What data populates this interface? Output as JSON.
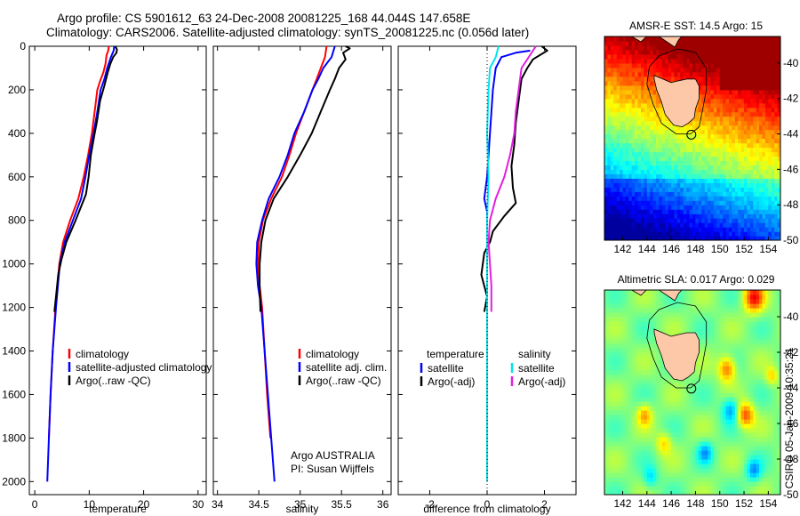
{
  "header": {
    "title_line1": "Argo profile: CS 5901612_63 24-Dec-2008 20081225_168 44.044S 147.658E",
    "title_line2": "Climatology: CARS2006. Satellite-adjusted climatology: synTS_20081225.nc (0.056d later)"
  },
  "side_label": "CSIRO 05-Jan-2009 10:35:21",
  "colors": {
    "climatology": "#ff0000",
    "satellite": "#0000ff",
    "argo": "#000000",
    "salinity_satellite": "#00e5ee",
    "salinity_argo": "#e020e0"
  },
  "chart_data": [
    {
      "type": "line",
      "id": "temperature-profile",
      "xlabel": "temperature",
      "xticks": [
        0,
        10,
        20,
        30
      ],
      "xlim": [
        -1,
        31.5
      ],
      "yticks": [
        0,
        200,
        400,
        600,
        800,
        1000,
        1200,
        1400,
        1600,
        1800,
        2000
      ],
      "ylim": [
        2000,
        0
      ],
      "ylim_axis": [
        0,
        2060
      ],
      "show_y_tick_labels": true,
      "legend": [
        "climatology",
        "satellite-adjusted climatology",
        "Argo(..raw -QC)"
      ],
      "series": [
        {
          "name": "climatology",
          "color": "#ff0000",
          "points": [
            [
              13.6,
              0
            ],
            [
              13.5,
              20
            ],
            [
              13.2,
              40
            ],
            [
              13.0,
              80
            ],
            [
              12.6,
              120
            ],
            [
              12.0,
              160
            ],
            [
              11.5,
              200
            ],
            [
              11.0,
              300
            ],
            [
              10.5,
              400
            ],
            [
              9.8,
              500
            ],
            [
              9.0,
              600
            ],
            [
              8.0,
              700
            ],
            [
              6.5,
              800
            ],
            [
              5.2,
              900
            ],
            [
              4.5,
              1000
            ],
            [
              3.8,
              1200
            ],
            [
              3.3,
              1400
            ],
            [
              2.9,
              1600
            ],
            [
              2.6,
              1800
            ]
          ]
        },
        {
          "name": "satellite-adjusted climatology",
          "color": "#0000ff",
          "points": [
            [
              14.6,
              0
            ],
            [
              14.5,
              20
            ],
            [
              14.0,
              50
            ],
            [
              13.3,
              100
            ],
            [
              12.8,
              150
            ],
            [
              12.1,
              200
            ],
            [
              11.5,
              300
            ],
            [
              10.8,
              400
            ],
            [
              10.0,
              500
            ],
            [
              9.3,
              600
            ],
            [
              8.5,
              700
            ],
            [
              7.0,
              800
            ],
            [
              5.5,
              900
            ],
            [
              4.6,
              1000
            ],
            [
              3.9,
              1200
            ],
            [
              3.3,
              1400
            ],
            [
              2.9,
              1600
            ],
            [
              2.6,
              1800
            ],
            [
              2.3,
              2000
            ]
          ]
        },
        {
          "name": "Argo(..raw -QC)",
          "color": "#000000",
          "points": [
            [
              14.8,
              0
            ],
            [
              15.1,
              15
            ],
            [
              15.0,
              30
            ],
            [
              14.4,
              50
            ],
            [
              13.9,
              80
            ],
            [
              13.4,
              120
            ],
            [
              12.8,
              180
            ],
            [
              12.0,
              250
            ],
            [
              11.4,
              350
            ],
            [
              11.0,
              400
            ],
            [
              10.3,
              500
            ],
            [
              9.9,
              600
            ],
            [
              9.4,
              680
            ],
            [
              8.3,
              750
            ],
            [
              7.5,
              800
            ],
            [
              5.8,
              900
            ],
            [
              4.9,
              980
            ],
            [
              4.3,
              1050
            ],
            [
              3.9,
              1150
            ],
            [
              3.6,
              1220
            ]
          ]
        }
      ]
    },
    {
      "type": "line",
      "id": "salinity-profile",
      "xlabel": "salinity",
      "xticks": [
        34,
        34.5,
        35,
        35.5,
        36
      ],
      "xlim": [
        33.95,
        36.1
      ],
      "yticks": [
        0,
        200,
        400,
        600,
        800,
        1000,
        1200,
        1400,
        1600,
        1800,
        2000
      ],
      "ylim": [
        2000,
        0
      ],
      "ylim_axis": [
        0,
        2060
      ],
      "show_y_tick_labels": false,
      "legend": [
        "climatology",
        "satellite adj. clim.",
        "Argo(..raw -QC)"
      ],
      "annotation": [
        "Argo AUSTRALIA",
        "PI: Susan Wijffels"
      ],
      "series": [
        {
          "name": "climatology",
          "color": "#ff0000",
          "points": [
            [
              35.32,
              0
            ],
            [
              35.3,
              50
            ],
            [
              35.25,
              100
            ],
            [
              35.2,
              150
            ],
            [
              35.15,
              200
            ],
            [
              35.05,
              300
            ],
            [
              34.95,
              400
            ],
            [
              34.87,
              500
            ],
            [
              34.78,
              600
            ],
            [
              34.65,
              700
            ],
            [
              34.55,
              800
            ],
            [
              34.5,
              900
            ],
            [
              34.49,
              1000
            ],
            [
              34.51,
              1100
            ],
            [
              34.54,
              1200
            ],
            [
              34.57,
              1400
            ],
            [
              34.6,
              1600
            ],
            [
              34.64,
              1800
            ]
          ]
        },
        {
          "name": "satellite adj. clim.",
          "color": "#0000ff",
          "points": [
            [
              35.42,
              0
            ],
            [
              35.38,
              50
            ],
            [
              35.28,
              100
            ],
            [
              35.22,
              150
            ],
            [
              35.15,
              200
            ],
            [
              35.05,
              300
            ],
            [
              34.93,
              400
            ],
            [
              34.85,
              500
            ],
            [
              34.75,
              600
            ],
            [
              34.62,
              700
            ],
            [
              34.54,
              800
            ],
            [
              34.48,
              900
            ],
            [
              34.47,
              1000
            ],
            [
              34.49,
              1100
            ],
            [
              34.53,
              1200
            ],
            [
              34.57,
              1400
            ],
            [
              34.61,
              1600
            ],
            [
              34.65,
              1800
            ],
            [
              34.69,
              2000
            ]
          ]
        },
        {
          "name": "Argo(..raw -QC)",
          "color": "#000000",
          "points": [
            [
              35.55,
              0
            ],
            [
              35.6,
              10
            ],
            [
              35.52,
              30
            ],
            [
              35.55,
              60
            ],
            [
              35.47,
              100
            ],
            [
              35.42,
              150
            ],
            [
              35.36,
              200
            ],
            [
              35.25,
              300
            ],
            [
              35.14,
              400
            ],
            [
              35.0,
              500
            ],
            [
              34.85,
              600
            ],
            [
              34.68,
              700
            ],
            [
              34.58,
              800
            ],
            [
              34.53,
              900
            ],
            [
              34.51,
              1000
            ],
            [
              34.51,
              1100
            ],
            [
              34.52,
              1220
            ]
          ]
        }
      ]
    },
    {
      "type": "line",
      "id": "difference-profile",
      "xlabel": "difference from climatology",
      "xticks": [
        -2,
        0,
        2
      ],
      "xlim": [
        -3.1,
        3.1
      ],
      "yticks": [
        0,
        200,
        400,
        600,
        800,
        1000,
        1200,
        1400,
        1600,
        1800,
        2000
      ],
      "ylim": [
        2000,
        0
      ],
      "ylim_axis": [
        0,
        2060
      ],
      "show_y_tick_labels": false,
      "legend_left": {
        "title": "temperature",
        "items": [
          "satellite",
          "Argo(-adj)"
        ]
      },
      "legend_right": {
        "title": "salinity",
        "items": [
          "satellite",
          "Argo(-adj)"
        ]
      },
      "series": [
        {
          "name": "temperature satellite",
          "color": "#0000ff",
          "points": [
            [
              1.5,
              20
            ],
            [
              1.0,
              30
            ],
            [
              0.5,
              50
            ],
            [
              0.3,
              100
            ],
            [
              0.2,
              200
            ],
            [
              0.1,
              400
            ],
            [
              0.0,
              600
            ],
            [
              -0.1,
              700
            ],
            [
              0.0,
              760
            ],
            [
              0.0,
              1000
            ],
            [
              0.0,
              1400
            ],
            [
              0.0,
              1800
            ],
            [
              0.0,
              2000
            ]
          ]
        },
        {
          "name": "temperature Argo(-adj)",
          "color": "#000000",
          "points": [
            [
              1.9,
              0
            ],
            [
              2.1,
              20
            ],
            [
              1.6,
              60
            ],
            [
              1.4,
              100
            ],
            [
              1.2,
              150
            ],
            [
              1.1,
              250
            ],
            [
              1.0,
              350
            ],
            [
              0.95,
              450
            ],
            [
              0.85,
              550
            ],
            [
              0.9,
              650
            ],
            [
              1.0,
              720
            ],
            [
              0.6,
              780
            ],
            [
              0.2,
              850
            ],
            [
              0.1,
              900
            ],
            [
              -0.1,
              950
            ],
            [
              -0.2,
              1050
            ],
            [
              0.0,
              1150
            ],
            [
              -0.1,
              1220
            ]
          ]
        },
        {
          "name": "salinity satellite",
          "color": "#00e5ee",
          "points": [
            [
              0.4,
              0
            ],
            [
              0.3,
              50
            ],
            [
              0.1,
              100
            ],
            [
              0.05,
              200
            ],
            [
              0.0,
              400
            ],
            [
              0.05,
              600
            ],
            [
              0.0,
              800
            ],
            [
              0.0,
              1000
            ],
            [
              0.0,
              1400
            ],
            [
              0.0,
              1800
            ],
            [
              0.0,
              2000
            ]
          ]
        },
        {
          "name": "salinity Argo(-adj)",
          "color": "#e020e0",
          "points": [
            [
              1.7,
              0
            ],
            [
              1.4,
              60
            ],
            [
              1.2,
              100
            ],
            [
              1.1,
              200
            ],
            [
              1.0,
              300
            ],
            [
              0.95,
              400
            ],
            [
              0.8,
              500
            ],
            [
              0.6,
              600
            ],
            [
              0.3,
              700
            ],
            [
              0.1,
              800
            ],
            [
              0.05,
              900
            ],
            [
              0.1,
              1000
            ],
            [
              0.15,
              1100
            ],
            [
              0.15,
              1220
            ]
          ]
        }
      ]
    },
    {
      "type": "heatmap",
      "id": "sst-map",
      "title": "AMSR-E SST: 14.5 Argo: 15",
      "xticks": [
        142,
        144,
        146,
        148,
        150,
        152,
        154
      ],
      "yticks": [
        -40,
        -42,
        -44,
        -46,
        -48,
        -50
      ],
      "xlim": [
        140.5,
        155
      ],
      "ylim": [
        -50,
        -38.5
      ],
      "profile_marker": {
        "lon": 147.66,
        "lat": -44.04
      },
      "description_colormap": "jet"
    },
    {
      "type": "heatmap",
      "id": "sla-map",
      "title": "Altimetric SLA: 0.017 Argo: 0.029",
      "xticks": [
        142,
        144,
        146,
        148,
        150,
        152,
        154
      ],
      "yticks": [
        -40,
        -42,
        -44,
        -46,
        -48,
        -50
      ],
      "xlim": [
        140.5,
        155
      ],
      "ylim": [
        -50,
        -38.5
      ],
      "profile_marker": {
        "lon": 147.66,
        "lat": -44.04
      },
      "description_colormap": "jet"
    }
  ]
}
